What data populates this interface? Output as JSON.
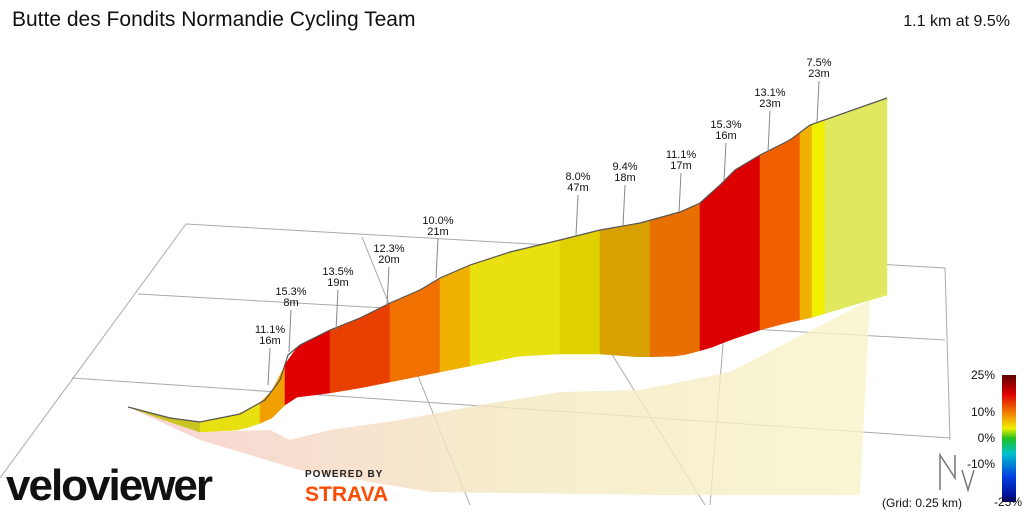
{
  "header": {
    "title": "Butte des Fondits Normandie Cycling Team",
    "summary": "1.1 km at 9.5%"
  },
  "annotations": [
    {
      "grade": "11.1%",
      "length": "16m"
    },
    {
      "grade": "15.3%",
      "length": "8m"
    },
    {
      "grade": "13.5%",
      "length": "19m"
    },
    {
      "grade": "12.3%",
      "length": "20m"
    },
    {
      "grade": "10.0%",
      "length": "21m"
    },
    {
      "grade": "8.0%",
      "length": "47m"
    },
    {
      "grade": "9.4%",
      "length": "18m"
    },
    {
      "grade": "11.1%",
      "length": "17m"
    },
    {
      "grade": "15.3%",
      "length": "16m"
    },
    {
      "grade": "13.1%",
      "length": "23m"
    },
    {
      "grade": "7.5%",
      "length": "23m"
    }
  ],
  "legend": {
    "ticks": [
      "25%",
      "10%",
      "0%",
      "-10%",
      "-25%"
    ],
    "grid_note": "(Grid: 0.25 km)"
  },
  "branding": {
    "logo": "veloviewer",
    "powered_by": "POWERED BY",
    "partner": "STRAVA"
  }
}
